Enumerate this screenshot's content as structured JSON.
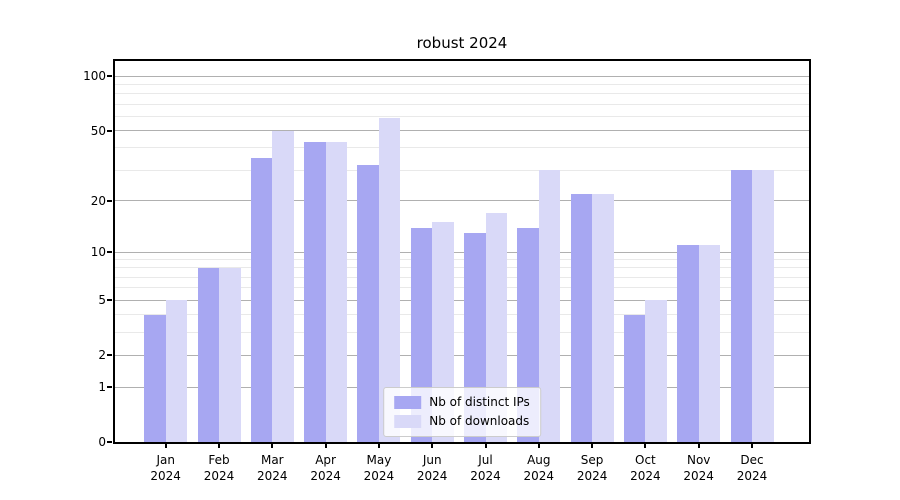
{
  "figure": {
    "background": "#ffffff"
  },
  "chart_data": {
    "type": "bar",
    "title": "robust 2024",
    "x_months": [
      "Jan",
      "Feb",
      "Mar",
      "Apr",
      "May",
      "Jun",
      "Jul",
      "Aug",
      "Sep",
      "Oct",
      "Nov",
      "Dec"
    ],
    "x_year": "2024",
    "series": [
      {
        "name": "Nb of distinct IPs",
        "slug": "distinct-ips",
        "color": "#a7a7f2",
        "values": [
          4,
          8,
          35,
          43,
          32,
          14,
          13,
          14,
          22,
          4,
          11,
          30
        ]
      },
      {
        "name": "Nb of downloads",
        "slug": "downloads",
        "color": "#d9d9f8",
        "values": [
          5,
          8,
          50,
          43,
          59,
          15,
          17,
          30,
          22,
          5,
          11,
          30
        ]
      }
    ],
    "yscale": "log1p",
    "ylim": [
      0,
      127
    ],
    "yticks_major": [
      0,
      1,
      2,
      5,
      10,
      20,
      50,
      100
    ],
    "yticks_minor": [
      3,
      4,
      6,
      7,
      8,
      9,
      30,
      40,
      60,
      70,
      80,
      90
    ],
    "grid": true,
    "legend_position": "lower center",
    "colors": {
      "axis": "#000000",
      "grid_major": "#b0b0b0",
      "grid_minor": "#e9e9e9",
      "tick_label": "#000000",
      "title": "#000000"
    }
  }
}
